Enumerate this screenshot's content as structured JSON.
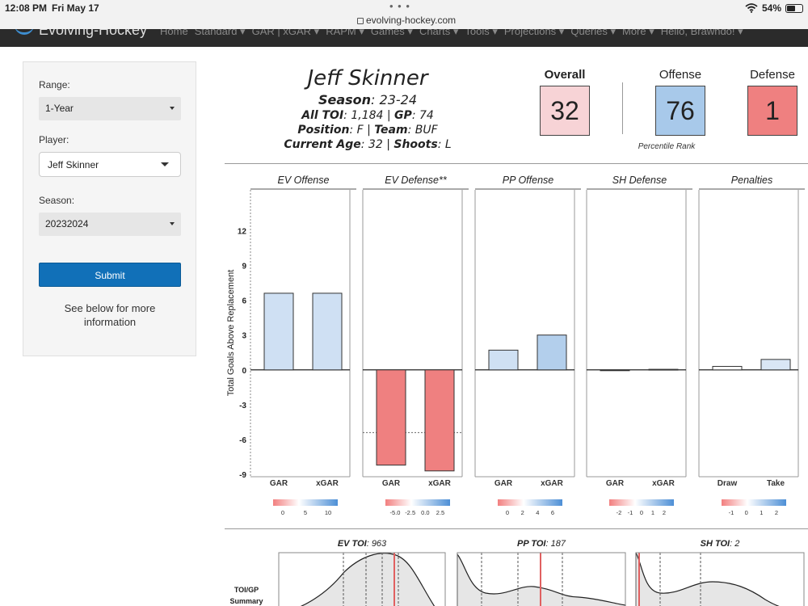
{
  "status_bar": {
    "time": "12:08 PM",
    "date": "Fri May 17",
    "url": "evolving-hockey.com",
    "battery": "54%",
    "battery_level": 0.54
  },
  "navbar": {
    "brand": "Evolving-Hockey",
    "items": [
      "Home",
      "Standard ▾",
      "GAR | xGAR ▾",
      "RAPM ▾",
      "Games ▾",
      "Charts ▾",
      "Tools ▾",
      "Projections ▾",
      "Queries ▾",
      "More ▾",
      "Hello, Brawndo! ▾"
    ]
  },
  "sidebar": {
    "range_label": "Range:",
    "range_value": "1-Year",
    "player_label": "Player:",
    "player_value": "Jeff Skinner",
    "season_label": "Season:",
    "season_value": "20232024",
    "submit_label": "Submit",
    "info_text": "See below for more information"
  },
  "player": {
    "name": "Jeff Skinner",
    "season_key": "Season",
    "season_val": ": 23-24",
    "toi_key": "All TOI",
    "toi_val": ": 1,184 | ",
    "gp_key": "GP",
    "gp_val": ": 74",
    "pos_key": "Position",
    "pos_val": ": F | ",
    "team_key": "Team",
    "team_val": ": BUF",
    "age_key": "Current Age",
    "age_val": ": 32 | ",
    "shoots_key": "Shoots",
    "shoots_val": ": L"
  },
  "scores": {
    "overall_label": "Overall",
    "overall_value": "32",
    "overall_color": "#f7d3d6",
    "offense_label": "Offense",
    "offense_value": "76",
    "offense_color": "#a8c9ea",
    "defense_label": "Defense",
    "defense_value": "1",
    "defense_color": "#ef8080",
    "caption": "Percentile Rank"
  },
  "chart_data": {
    "type": "bar",
    "ylabel": "Total Goals Above Replacement",
    "ylim": [
      -9.2,
      15.5
    ],
    "yticks": [
      "12",
      "9",
      "6",
      "3",
      "0",
      "-3",
      "-6",
      "-9"
    ],
    "panels": [
      {
        "title": "EV Offense",
        "categories": [
          "GAR",
          "xGAR"
        ],
        "values": [
          6.6,
          6.6
        ],
        "colors": [
          "#cfe0f3",
          "#cfe0f3"
        ],
        "legend_ticks": [
          "0",
          "5",
          "10"
        ]
      },
      {
        "title": "EV Defense**",
        "categories": [
          "GAR",
          "xGAR"
        ],
        "values": [
          -8.2,
          -8.7
        ],
        "colors": [
          "#ef8080",
          "#ef8080"
        ],
        "reference_line": -5.4,
        "legend_ticks": [
          "-5.0",
          "-2.5",
          "0.0",
          "2.5"
        ]
      },
      {
        "title": "PP Offense",
        "categories": [
          "GAR",
          "xGAR"
        ],
        "values": [
          1.7,
          3.0
        ],
        "colors": [
          "#cfe0f3",
          "#b3cfec"
        ],
        "legend_ticks": [
          "0",
          "2",
          "4",
          "6"
        ]
      },
      {
        "title": "SH Defense",
        "categories": [
          "GAR",
          "xGAR"
        ],
        "values": [
          0.0,
          0.05
        ],
        "colors": [
          "#f5f5f5",
          "#f5f5f5"
        ],
        "legend_ticks": [
          "-2",
          "-1",
          "0",
          "1",
          "2"
        ]
      },
      {
        "title": "Penalties",
        "categories": [
          "Draw",
          "Take"
        ],
        "values": [
          0.3,
          0.9
        ],
        "colors": [
          "#ffffff",
          "#d9e6f5"
        ],
        "legend_ticks": [
          "-1",
          "0",
          "1",
          "2"
        ]
      }
    ]
  },
  "toi": {
    "row_label_1": "TOI/GP",
    "row_label_2": "Summary",
    "panels": [
      {
        "key": "EV TOI",
        "val": ": 963"
      },
      {
        "key": "PP TOI",
        "val": ": 187"
      },
      {
        "key": "SH TOI",
        "val": ": 2"
      }
    ]
  }
}
